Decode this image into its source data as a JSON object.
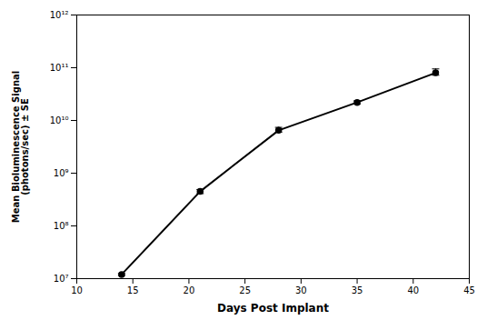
{
  "chart_data": {
    "type": "line",
    "xlabel": "Days Post Implant",
    "ylabel": "Mean Bioluminescence Signal\n(photons/sec) ± SE",
    "x": [
      14,
      21,
      28,
      35,
      42
    ],
    "values": [
      12000000.0,
      450000000.0,
      6500000000.0,
      22000000000.0,
      80000000000.0
    ],
    "yerr_low": [
      500000.0,
      40000000.0,
      500000000.0,
      1500000000.0,
      8000000000.0
    ],
    "yerr_high": [
      500000.0,
      40000000.0,
      900000000.0,
      1500000000.0,
      15000000000.0
    ],
    "color": "black",
    "marker": "circle",
    "line_style": "solid",
    "log": "y",
    "grid": false,
    "xlim": [
      10,
      45
    ],
    "ylim": [
      10000000.0,
      1000000000000.0
    ],
    "xticks": [
      10,
      15,
      20,
      25,
      30,
      35,
      40,
      45
    ],
    "yticks": [
      {
        "value": 10000000.0,
        "label": "10⁷"
      },
      {
        "value": 100000000.0,
        "label": "10⁸"
      },
      {
        "value": 1000000000.0,
        "label": "10⁹"
      },
      {
        "value": 10000000000.0,
        "label": "10¹⁰"
      },
      {
        "value": 100000000000.0,
        "label": "10¹¹"
      },
      {
        "value": 1000000000000.0,
        "label": "10¹²"
      }
    ]
  }
}
